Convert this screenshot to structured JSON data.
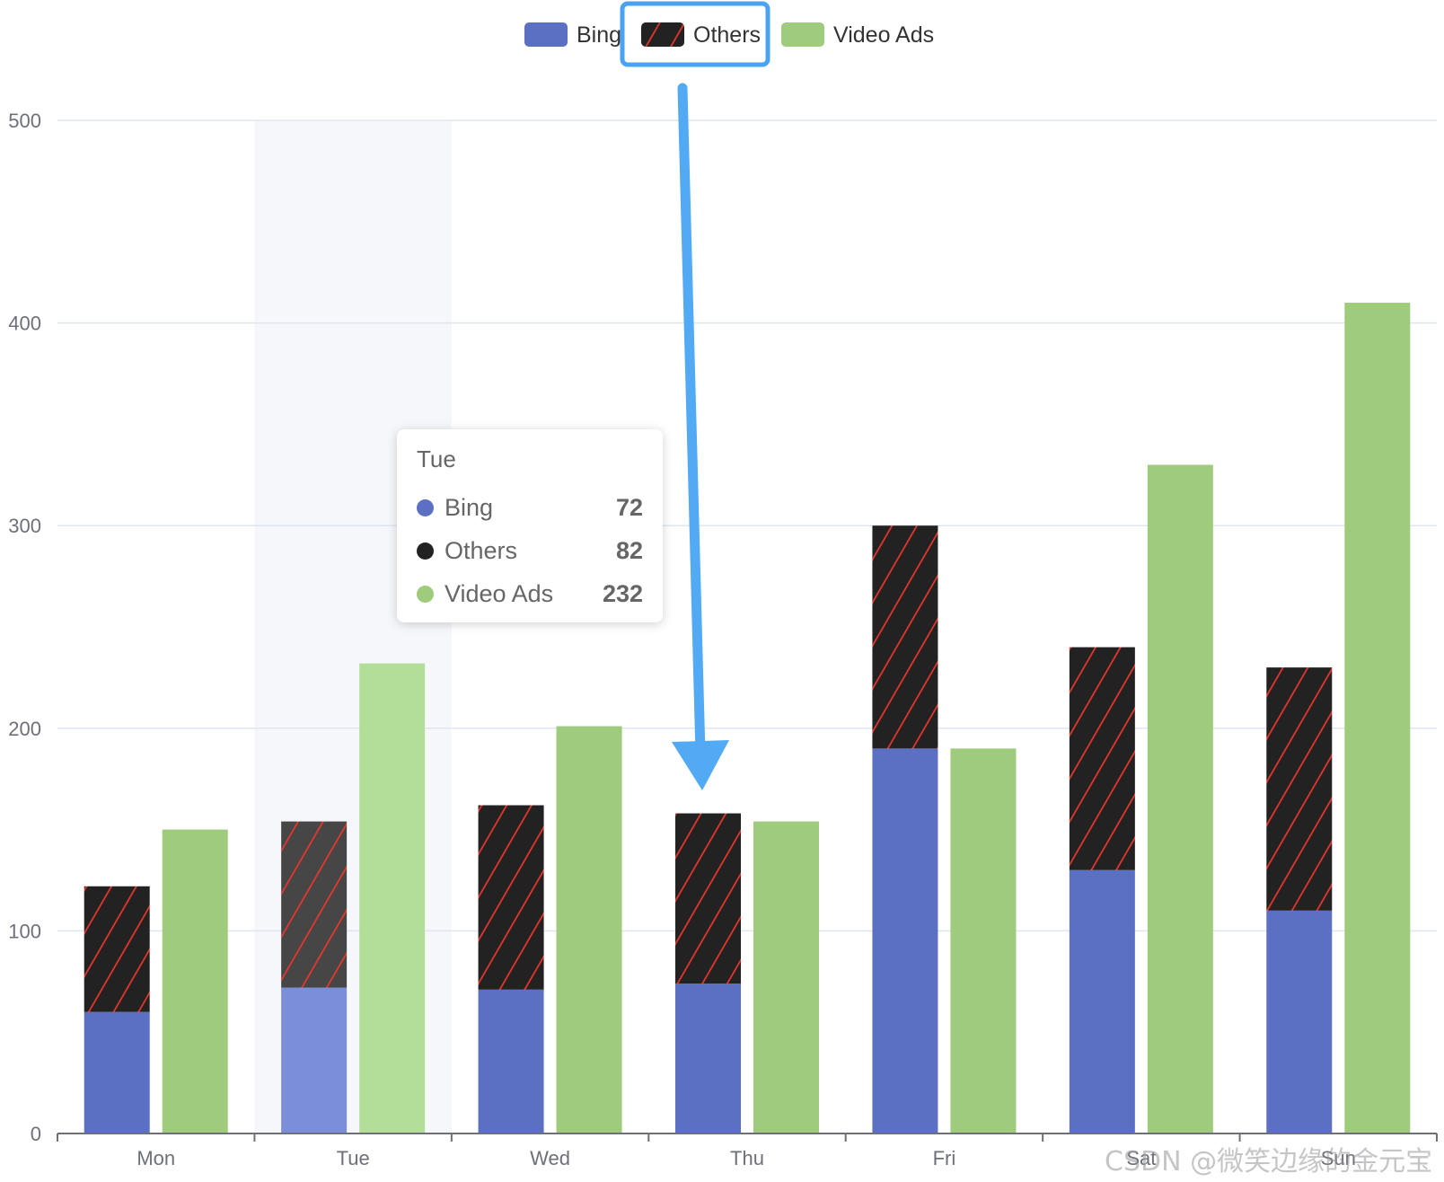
{
  "chart_data": {
    "type": "bar",
    "categories": [
      "Mon",
      "Tue",
      "Wed",
      "Thu",
      "Fri",
      "Sat",
      "Sun"
    ],
    "series": [
      {
        "name": "Bing",
        "stack": "ad",
        "color": "#5b70c2",
        "values": [
          60,
          72,
          71,
          74,
          190,
          130,
          110
        ]
      },
      {
        "name": "Others",
        "stack": "ad",
        "color": "#222222",
        "pattern": "red-diagonal-stripes",
        "values": [
          62,
          82,
          91,
          84,
          110,
          110,
          120
        ]
      },
      {
        "name": "Video Ads",
        "color": "#9ecb7c",
        "values": [
          150,
          232,
          201,
          154,
          190,
          330,
          410
        ]
      }
    ],
    "yticks": [
      0,
      100,
      200,
      300,
      400,
      500
    ],
    "ylim": [
      0,
      500
    ],
    "grid": true,
    "legend_position": "top-center",
    "highlighted_category": "Tue",
    "highlighted_legend_item": "Others",
    "annotation": "blue arrow from highlighted Others legend item to Thu Others bar"
  },
  "tooltip": {
    "title": "Tue",
    "rows": [
      {
        "name": "Bing",
        "value": "72",
        "color": "#5b70c2"
      },
      {
        "name": "Others",
        "value": "82",
        "color": "#222222"
      },
      {
        "name": "Video Ads",
        "value": "232",
        "color": "#9ecb7c"
      }
    ]
  },
  "watermark": "CSDN @微笑边缘的金元宝"
}
